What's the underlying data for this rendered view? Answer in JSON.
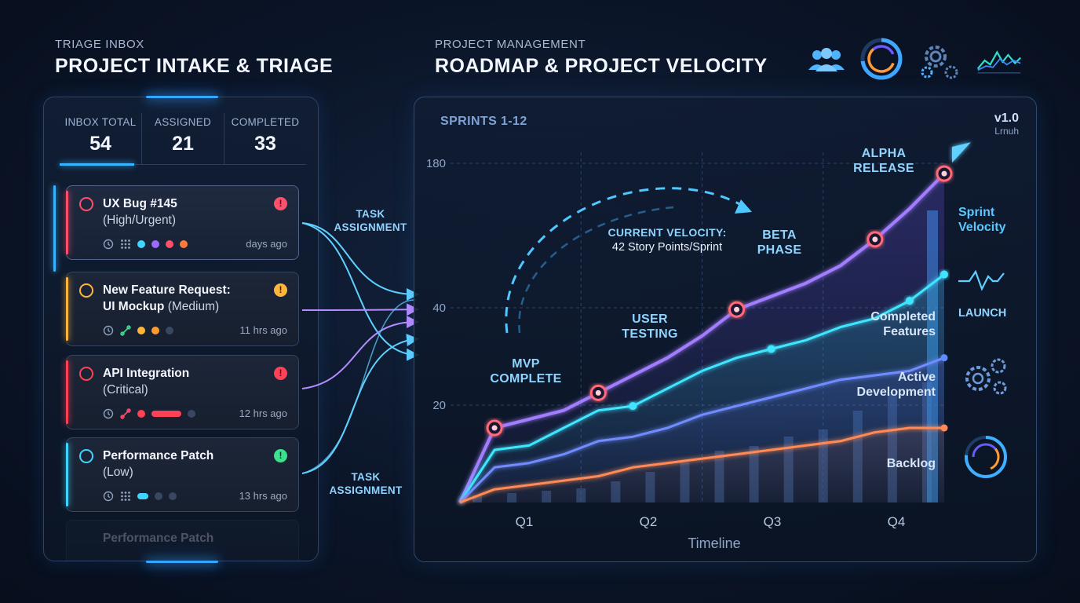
{
  "left_header": {
    "subtitle": "TRIAGE INBOX",
    "title": "PROJECT INTAKE & TRIAGE"
  },
  "right_header": {
    "subtitle": "PROJECT MANAGEMENT",
    "title": "ROADMAP & PROJECT VELOCITY"
  },
  "header_icons": [
    "team-icon",
    "progress-ring-icon",
    "gears-icon",
    "wave-graph-icon"
  ],
  "stats": [
    {
      "label": "INBOX TOTAL",
      "value": "54"
    },
    {
      "label": "ASSIGNED",
      "value": "21"
    },
    {
      "label": "COMPLETED",
      "value": "33"
    }
  ],
  "cards": [
    {
      "title": "UX Bug #145",
      "subtitle": "(High/Urgent)",
      "time": "days ago",
      "badge": "!",
      "accent": "#ff4f6a"
    },
    {
      "title": "New Feature Request:",
      "title2": "UI Mockup",
      "subtitle": "(Medium)",
      "time": "11 hrs ago",
      "badge": "!",
      "accent": "#ffb43a"
    },
    {
      "title": "API Integration",
      "subtitle": "(Critical)",
      "time": "12 hrs ago",
      "badge": "!",
      "accent": "#ff4055"
    },
    {
      "title": "Performance Patch",
      "subtitle": "(Low)",
      "time": "13 hrs ago",
      "badge": "!",
      "accent": "#3ed6ff"
    }
  ],
  "hidden_card_title": "Performance Patch",
  "flow_labels": {
    "top": "TASK\nASSIGNMENT",
    "bottom": "TASK\nASSIGNMENT"
  },
  "chart": {
    "heading": "SPRINTS 1-12",
    "version": "v1.0",
    "version_sub": "Lrnuh",
    "velocity_label": "CURRENT VELOCITY:",
    "velocity_value": "42 Story Points/Sprint",
    "milestones": {
      "mvp": "MVP\nCOMPLETE",
      "user_testing": "USER\nTESTING",
      "beta": "BETA\nPHASE",
      "alpha": "ALPHA\nRELEASE"
    },
    "side_labels": {
      "sprint_velocity": "Sprint\nVelocity",
      "launch": "LAUNCH",
      "completed": "Completed\nFeatures",
      "active": "Active\nDevelopment",
      "backlog": "Backlog"
    }
  },
  "chart_data": {
    "type": "line",
    "title": "SPRINTS 1-12",
    "xlabel": "Timeline",
    "ylabel": "",
    "categories": [
      "Q1",
      "Q2",
      "Q3",
      "Q4"
    ],
    "y_ticks": [
      "20",
      "40",
      "180"
    ],
    "x": [
      0,
      1,
      2,
      3,
      4,
      5,
      6,
      7,
      8,
      9,
      10,
      11,
      12,
      13,
      14
    ],
    "series": [
      {
        "color": "#a27dff",
        "values": [
          0,
          17,
          19,
          21,
          25,
          29,
          33,
          38,
          44,
          47,
          50,
          54,
          60,
          67,
          75
        ]
      },
      {
        "color": "#3fe6ff",
        "values": [
          0,
          12,
          13,
          17,
          21,
          22,
          26,
          30,
          33,
          35,
          37,
          40,
          42,
          46,
          52
        ]
      },
      {
        "color": "#6f8cff",
        "values": [
          0,
          8,
          9,
          11,
          14,
          15,
          17,
          20,
          22,
          24,
          26,
          28,
          29,
          30,
          33
        ]
      },
      {
        "color": "#ff8a55",
        "values": [
          0,
          3,
          4,
          5,
          6,
          8,
          9,
          10,
          11,
          12,
          13,
          14,
          16,
          17,
          17
        ]
      }
    ],
    "bars": [
      3,
      4,
      5,
      6,
      9,
      13,
      17,
      22,
      24,
      28,
      31,
      39,
      46,
      51
    ],
    "grid": true
  }
}
